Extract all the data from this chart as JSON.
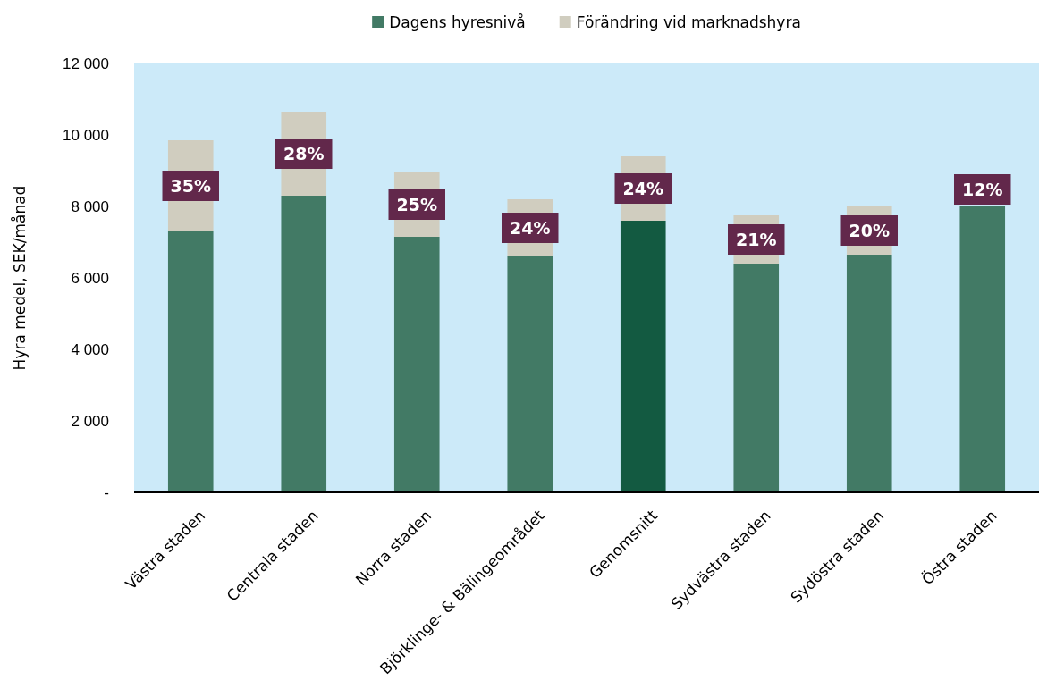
{
  "chart_data": {
    "type": "bar",
    "stacked": true,
    "ylabel": "Hyra medel, SEK/månad",
    "legend": "top",
    "categories": [
      "Västra staden",
      "Centrala staden",
      "Norra staden",
      "Björklinge- & Bälingeområdet",
      "Genomsnitt",
      "Sydvästra staden",
      "Sydöstra staden",
      "Östra staden"
    ],
    "series": [
      {
        "name": "Dagens hyresnivå",
        "color": "#427a65",
        "colors": [
          "#427a65",
          "#427a65",
          "#427a65",
          "#427a65",
          "#135a41",
          "#427a65",
          "#427a65",
          "#427a65"
        ],
        "values": [
          7300,
          8300,
          7150,
          6600,
          7600,
          6400,
          6650,
          8000
        ]
      },
      {
        "name": "Förändring vid marknadshyra",
        "color": "#d0cdbf",
        "values": [
          2550,
          2350,
          1800,
          1600,
          1800,
          1350,
          1350,
          null
        ]
      }
    ],
    "annotations": [
      "35%",
      "28%",
      "25%",
      "24%",
      "24%",
      "21%",
      "20%",
      "12%"
    ],
    "ylim": [
      0,
      12000
    ],
    "yticks": [
      {
        "value": 0,
        "label": "-"
      },
      {
        "value": 2000,
        "label": "2 000"
      },
      {
        "value": 4000,
        "label": "4 000"
      },
      {
        "value": 6000,
        "label": "6 000"
      },
      {
        "value": 8000,
        "label": "8 000"
      },
      {
        "value": 10000,
        "label": "10 000"
      },
      {
        "value": 12000,
        "label": "12 000"
      }
    ]
  }
}
